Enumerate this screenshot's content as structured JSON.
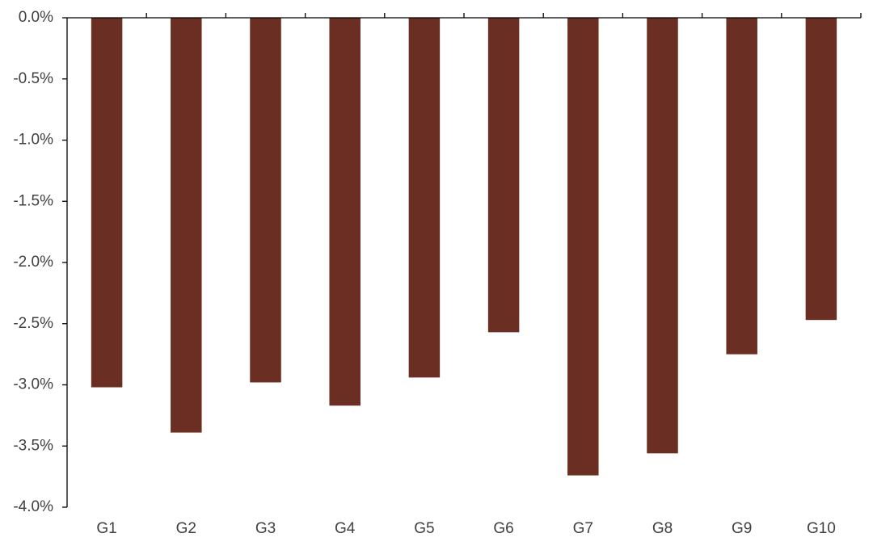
{
  "chart_data": {
    "type": "bar",
    "categories": [
      "G1",
      "G2",
      "G3",
      "G4",
      "G5",
      "G6",
      "G7",
      "G8",
      "G9",
      "G10"
    ],
    "values": [
      -3.02,
      -3.39,
      -2.98,
      -3.17,
      -2.94,
      -2.57,
      -3.74,
      -3.56,
      -2.75,
      -2.47
    ],
    "color": "#6a2f22",
    "ylim": [
      -4.0,
      0.0
    ],
    "yticks": [
      {
        "value": 0.0,
        "label": "0.0%"
      },
      {
        "value": -0.5,
        "label": "-0.5%"
      },
      {
        "value": -1.0,
        "label": "-1.0%"
      },
      {
        "value": -1.5,
        "label": "-1.5%"
      },
      {
        "value": -2.0,
        "label": "-2.0%"
      },
      {
        "value": -2.5,
        "label": "-2.5%"
      },
      {
        "value": -3.0,
        "label": "-3.0%"
      },
      {
        "value": -3.5,
        "label": "-3.5%"
      },
      {
        "value": -4.0,
        "label": "-4.0%"
      }
    ],
    "grid": false
  }
}
